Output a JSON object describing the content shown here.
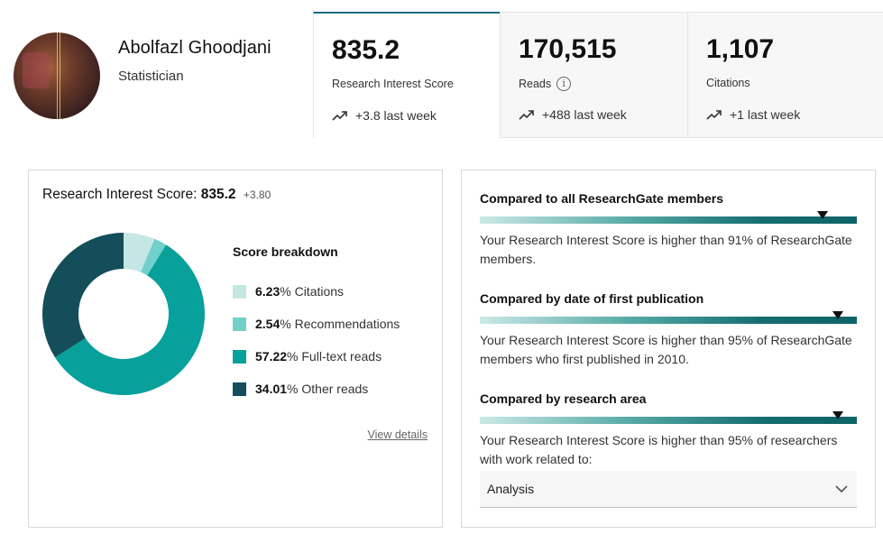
{
  "profile": {
    "name": "Abolfazl Ghoodjani",
    "role": "Statistician"
  },
  "stats": [
    {
      "value": "835.2",
      "label": "Research Interest Score",
      "delta": "+3.8 last week",
      "info": false
    },
    {
      "value": "170,515",
      "label": "Reads",
      "delta": "+488 last week",
      "info": true
    },
    {
      "value": "1,107",
      "label": "Citations",
      "delta": "+1 last week",
      "info": false
    }
  ],
  "score_panel": {
    "title_prefix": "Research Interest Score:",
    "title_value": "835.2",
    "title_delta": "+3.80",
    "breakdown_title": "Score breakdown",
    "view_details": "View details",
    "legend": [
      {
        "pct": "6.23",
        "label": "% Citations"
      },
      {
        "pct": "2.54",
        "label": "% Recommendations"
      },
      {
        "pct": "57.22",
        "label": "% Full-text reads"
      },
      {
        "pct": "34.01",
        "label": "% Other reads"
      }
    ]
  },
  "breakdown_data": {
    "values": [
      6.23,
      2.54,
      57.22,
      34.01
    ],
    "colors": [
      "#c4e7e5",
      "#71d0cb",
      "#08a09a",
      "#134e5a"
    ]
  },
  "comparisons": [
    {
      "title": "Compared to all ResearchGate members",
      "percentile": 91,
      "text": "Your Research Interest Score is higher than 91% of ResearchGate members."
    },
    {
      "title": "Compared by date of first publication",
      "percentile": 95,
      "text": "Your Research Interest Score is higher than 95% of ResearchGate members who first published in 2010."
    },
    {
      "title": "Compared by research area",
      "percentile": 95,
      "text": "Your Research Interest Score is higher than 95% of researchers with work related to:"
    }
  ],
  "research_area_select": {
    "value": "Analysis"
  },
  "colors": {
    "accent": "#1c6c8c",
    "teal_dark": "#0e6467"
  }
}
